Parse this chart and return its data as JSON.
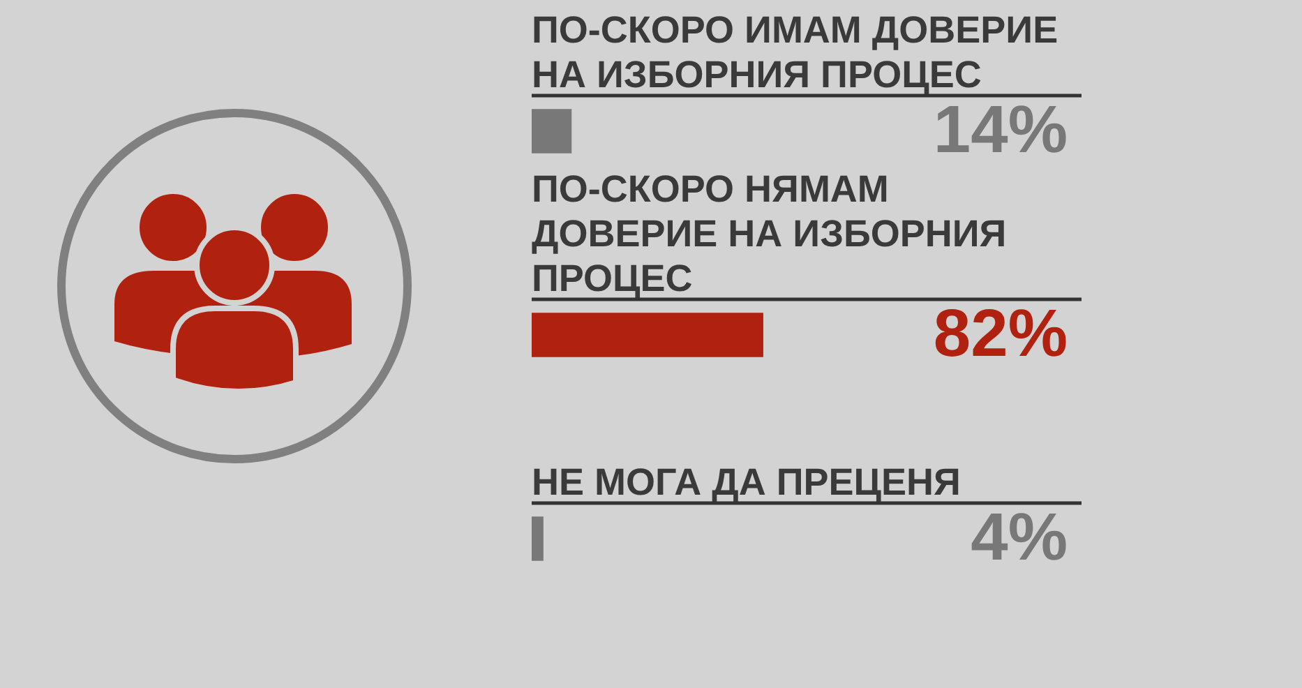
{
  "chart_data": {
    "type": "bar",
    "orientation": "horizontal",
    "categories": [
      "ПО-СКОРО ИМАМ ДОВЕРИЕ НА ИЗБОРНИЯ ПРОЦЕС",
      "ПО-СКОРО НЯМАМ ДОВЕРИЕ НА ИЗБОРНИЯ ПРОЦЕС",
      "НЕ МОГА ДА ПРЕЦЕНЯ"
    ],
    "values": [
      14,
      82,
      4
    ],
    "colors": [
      "#787878",
      "#b1210f",
      "#787878"
    ],
    "value_labels": [
      "14%",
      "82%",
      "4%"
    ],
    "tick_labels": false
  }
}
